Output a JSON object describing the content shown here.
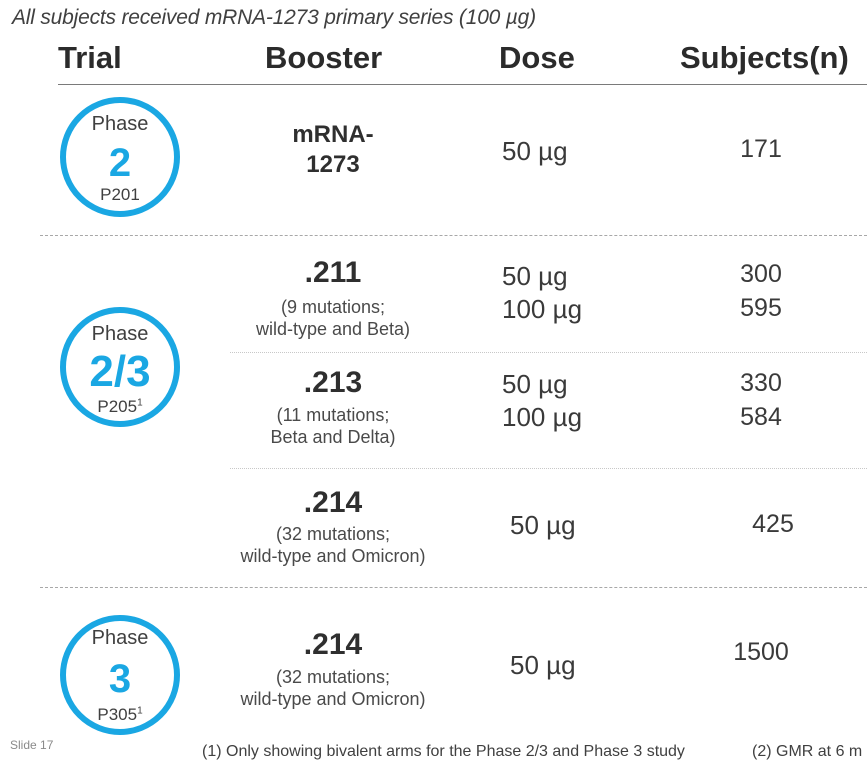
{
  "subtitle": "All subjects received mRNA-1273 primary series (100  µg)",
  "headers": {
    "trial": "Trial",
    "booster": "Booster",
    "dose": "Dose",
    "subjects": "Subjects(n)"
  },
  "accent_color": "#1aa7e3",
  "trials": [
    {
      "phase_label": "Phase",
      "phase_num": "2",
      "code": "P201",
      "sup": ""
    },
    {
      "phase_label": "Phase",
      "phase_num": "2/3",
      "code": "P205",
      "sup": "1"
    },
    {
      "phase_label": "Phase",
      "phase_num": "3",
      "code": "P305",
      "sup": "1"
    }
  ],
  "rows": [
    {
      "name_line1": "mRNA-",
      "name_line2": "1273",
      "desc_line1": "",
      "desc_line2": "",
      "doses": [
        "50 µg"
      ],
      "subjects": [
        "171"
      ]
    },
    {
      "name": ".211",
      "desc_line1": "(9 mutations;",
      "desc_line2": "wild-type and Beta)",
      "doses": [
        "50 µg",
        "100 µg"
      ],
      "subjects": [
        "300",
        "595"
      ]
    },
    {
      "name": ".213",
      "desc_line1": "(11 mutations;",
      "desc_line2": "Beta and Delta)",
      "doses": [
        "50 µg",
        "100 µg"
      ],
      "subjects": [
        "330",
        "584"
      ]
    },
    {
      "name": ".214",
      "desc_line1": "(32 mutations;",
      "desc_line2": "wild-type and Omicron)",
      "doses": [
        "50 µg"
      ],
      "subjects": [
        "425"
      ]
    },
    {
      "name": ".214",
      "desc_line1": "(32 mutations;",
      "desc_line2": "wild-type and Omicron)",
      "doses": [
        "50 µg"
      ],
      "subjects": [
        "1500"
      ]
    }
  ],
  "slide_number": "Slide 17",
  "footnote_1": "(1) Only showing bivalent arms for the Phase 2/3 and Phase 3 study",
  "footnote_2": "(2) GMR at 6 m"
}
